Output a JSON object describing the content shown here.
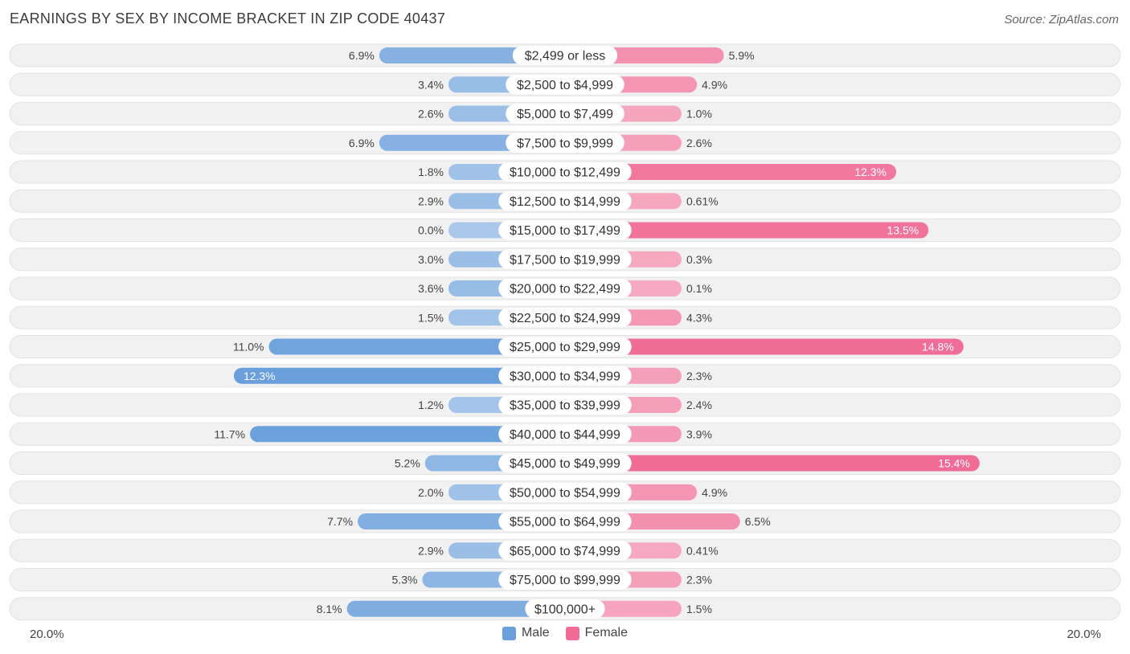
{
  "header": {
    "title": "EARNINGS BY SEX BY INCOME BRACKET IN ZIP CODE 40437",
    "source": "Source: ZipAtlas.com"
  },
  "axis": {
    "left_label": "20.0%",
    "right_label": "20.0%"
  },
  "legend": {
    "male_label": "Male",
    "female_label": "Female"
  },
  "colors": {
    "male": "#6a9fdb",
    "male_light": "#aac8ea",
    "female": "#f06b96",
    "female_light": "#f6a9c2",
    "row_bg": "#f1f1f1"
  },
  "chart_data": {
    "type": "bar",
    "orientation": "horizontal-diverging",
    "title": "EARNINGS BY SEX BY INCOME BRACKET IN ZIP CODE 40437",
    "xlim": [
      -20,
      20
    ],
    "categories": [
      "$2,499 or less",
      "$2,500 to $4,999",
      "$5,000 to $7,499",
      "$7,500 to $9,999",
      "$10,000 to $12,499",
      "$12,500 to $14,999",
      "$15,000 to $17,499",
      "$17,500 to $19,999",
      "$20,000 to $22,499",
      "$22,500 to $24,999",
      "$25,000 to $29,999",
      "$30,000 to $34,999",
      "$35,000 to $39,999",
      "$40,000 to $44,999",
      "$45,000 to $49,999",
      "$50,000 to $54,999",
      "$55,000 to $64,999",
      "$65,000 to $74,999",
      "$75,000 to $99,999",
      "$100,000+"
    ],
    "series": [
      {
        "name": "Male",
        "values": [
          6.9,
          3.4,
          2.6,
          6.9,
          1.8,
          2.9,
          0.0,
          3.0,
          3.6,
          1.5,
          11.0,
          12.3,
          1.2,
          11.7,
          5.2,
          2.0,
          7.7,
          2.9,
          5.3,
          8.1
        ],
        "labels": [
          "6.9%",
          "3.4%",
          "2.6%",
          "6.9%",
          "1.8%",
          "2.9%",
          "0.0%",
          "3.0%",
          "3.6%",
          "1.5%",
          "11.0%",
          "12.3%",
          "1.2%",
          "11.7%",
          "5.2%",
          "2.0%",
          "7.7%",
          "2.9%",
          "5.3%",
          "8.1%"
        ]
      },
      {
        "name": "Female",
        "values": [
          5.9,
          4.9,
          1.0,
          2.6,
          12.3,
          0.61,
          13.5,
          0.3,
          0.1,
          4.3,
          14.8,
          2.3,
          2.4,
          3.9,
          15.4,
          4.9,
          6.5,
          0.41,
          2.3,
          1.5
        ],
        "labels": [
          "5.9%",
          "4.9%",
          "1.0%",
          "2.6%",
          "12.3%",
          "0.61%",
          "13.5%",
          "0.3%",
          "0.1%",
          "4.3%",
          "14.8%",
          "2.3%",
          "2.4%",
          "3.9%",
          "15.4%",
          "4.9%",
          "6.5%",
          "0.41%",
          "2.3%",
          "1.5%"
        ]
      }
    ]
  }
}
